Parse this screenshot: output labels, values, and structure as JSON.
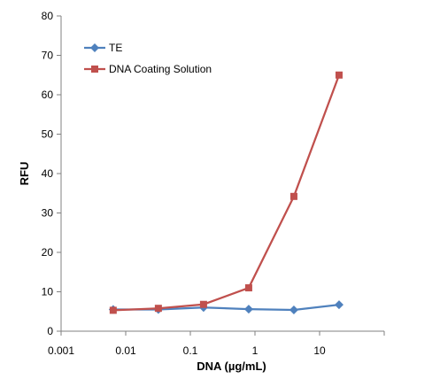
{
  "chart_data": {
    "type": "line",
    "title": "",
    "xlabel": "DNA (µg/mL)",
    "ylabel": "RFU",
    "x_scale": "log",
    "xlim": [
      0.001,
      100
    ],
    "ylim": [
      0,
      80
    ],
    "x_ticks": [
      0.001,
      0.01,
      0.1,
      1,
      10
    ],
    "x_tick_labels": [
      "0.001",
      "0.01",
      "0.1",
      "1",
      "10"
    ],
    "y_ticks": [
      0,
      10,
      20,
      30,
      40,
      50,
      60,
      70,
      80
    ],
    "y_tick_labels": [
      "0",
      "10",
      "20",
      "30",
      "40",
      "50",
      "60",
      "70",
      "80"
    ],
    "grid": false,
    "legend_position": "top-left",
    "series": [
      {
        "name": "TE",
        "color": "#4F81BD",
        "marker": "diamond",
        "x": [
          0.0064,
          0.032,
          0.16,
          0.8,
          4,
          20
        ],
        "values": [
          5.5,
          5.5,
          6.0,
          5.6,
          5.4,
          6.7
        ]
      },
      {
        "name": "DNA Coating Solution",
        "color": "#C0504D",
        "marker": "square",
        "x": [
          0.0064,
          0.032,
          0.16,
          0.8,
          4,
          20
        ],
        "values": [
          5.3,
          5.8,
          6.8,
          11.0,
          34.2,
          65.0
        ]
      }
    ]
  }
}
